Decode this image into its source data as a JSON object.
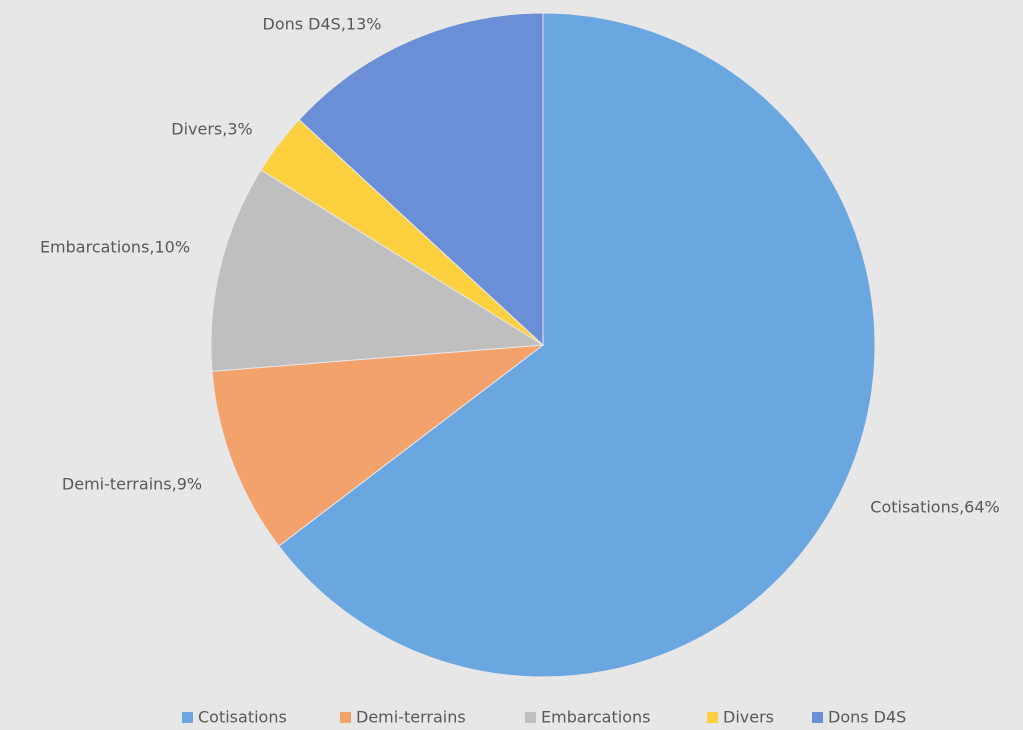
{
  "chart_data": {
    "type": "pie",
    "categories": [
      "Cotisations",
      "Demi-terrains",
      "Embarcations",
      "Divers",
      "Dons D4S"
    ],
    "values": [
      64,
      9,
      10,
      3,
      13
    ],
    "value_labels": [
      "Cotisations,64%",
      "Demi-terrains,9%",
      "Embarcations,10%",
      "Divers,3%",
      "Dons D4S,13%"
    ],
    "colors": [
      "#6aa6e0",
      "#f2a26a",
      "#bfbfbf",
      "#fdd040",
      "#6b8fd6"
    ],
    "legend": "bottom"
  }
}
